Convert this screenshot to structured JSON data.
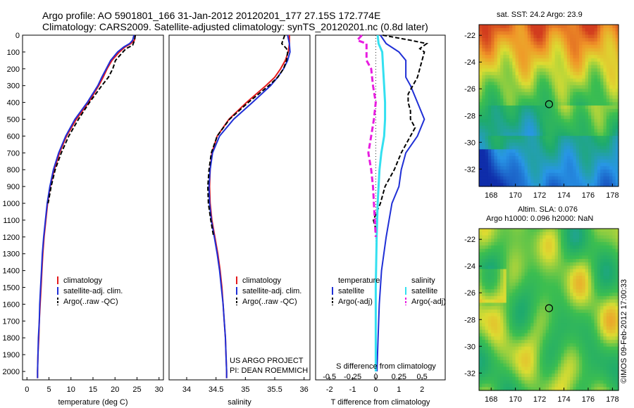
{
  "header": {
    "line1": "Argo profile: AO 5901801_166 31-Jan-2012 20120201_177 27.15S 172.774E",
    "line2": "Climatology: CARS2009. Satellite-adjusted climatology: synTS_20120201.nc (0.8d later)"
  },
  "map_sst": {
    "title": "sat. SST: 24.2 Argo: 23.9"
  },
  "map_sla": {
    "title1": "Altim. SLA: 0.076",
    "title2": "Argo h1000: 0.096 h2000: NaN"
  },
  "credit": "©IMOS 09-Feb-2012 17:00:33",
  "project": {
    "line1": "US ARGO PROJECT",
    "line2": "PI: DEAN ROEMMICH"
  },
  "colors": {
    "climatology": "#e31a1c",
    "satellite": "#1f2fd6",
    "argo": "#000000",
    "sat_s": "#33e0f0",
    "argo_s": "#e81ce0"
  },
  "chart_data": [
    {
      "type": "line",
      "xlabel": "temperature (deg C)",
      "xlim": [
        -1,
        31
      ],
      "ylim": [
        2050,
        0
      ],
      "xticks": [
        0,
        5,
        10,
        15,
        20,
        25,
        30
      ],
      "yticks": [
        0,
        100,
        200,
        300,
        400,
        500,
        600,
        700,
        800,
        900,
        1000,
        1100,
        1200,
        1300,
        1400,
        1500,
        1600,
        1700,
        1800,
        1900,
        2000
      ],
      "legend": [
        "climatology",
        "satellite-adj. clim.",
        "Argo(..raw -QC)"
      ],
      "series": [
        {
          "name": "climatology",
          "depth": [
            0,
            30,
            50,
            70,
            100,
            150,
            200,
            250,
            300,
            400,
            500,
            600,
            700,
            800,
            900,
            1000,
            1100,
            1200,
            1300,
            1400,
            1500,
            1600,
            1700,
            1800,
            1900,
            2000,
            2040
          ],
          "values": [
            24.6,
            24.4,
            23.6,
            22.3,
            21.0,
            19.3,
            18.2,
            17.3,
            16.3,
            14.0,
            11.2,
            9.0,
            7.4,
            6.2,
            5.3,
            4.7,
            4.3,
            3.9,
            3.6,
            3.4,
            3.2,
            3.0,
            2.8,
            2.7,
            2.5,
            2.4,
            2.4
          ]
        },
        {
          "name": "satellite-adj. clim.",
          "depth": [
            0,
            30,
            50,
            70,
            100,
            150,
            200,
            250,
            300,
            400,
            500,
            600,
            700,
            800,
            900,
            1000,
            1100,
            1200,
            1300,
            1400,
            1500,
            1600,
            1700,
            1800,
            1900,
            2000,
            2040
          ],
          "values": [
            24.3,
            24.0,
            23.3,
            22.0,
            20.6,
            19.0,
            18.0,
            17.0,
            16.1,
            13.7,
            10.9,
            8.8,
            7.2,
            6.0,
            5.2,
            4.6,
            4.2,
            3.8,
            3.5,
            3.3,
            3.1,
            2.9,
            2.8,
            2.6,
            2.5,
            2.4,
            2.4
          ]
        },
        {
          "name": "Argo(..raw -QC)",
          "depth": [
            0,
            20,
            40,
            60,
            80,
            100,
            150,
            200,
            250,
            300,
            350,
            400,
            500,
            600,
            700,
            800,
            900,
            1000
          ],
          "values": [
            24.6,
            24.5,
            24.3,
            24.0,
            22.5,
            21.8,
            20.1,
            19.5,
            18.5,
            17.0,
            15.6,
            14.2,
            11.7,
            9.5,
            7.8,
            6.4,
            5.5,
            4.8
          ]
        }
      ]
    },
    {
      "type": "line",
      "xlabel": "salinity",
      "xlim": [
        33.7,
        36.1
      ],
      "ylim": [
        2050,
        0
      ],
      "xticks": [
        34,
        34.5,
        35,
        35.5,
        36
      ],
      "xticklabels": [
        "34",
        "34.5",
        "35",
        "35.5",
        "36"
      ],
      "legend": [
        "climatology",
        "satellite-adj. clim.",
        "Argo(..raw -QC)"
      ],
      "series": [
        {
          "name": "climatology",
          "depth": [
            0,
            50,
            100,
            150,
            200,
            250,
            300,
            400,
            500,
            600,
            700,
            800,
            900,
            1000,
            1100,
            1200,
            1300,
            1400,
            1500,
            1600,
            1700,
            1800,
            1900,
            2000,
            2040
          ],
          "values": [
            35.75,
            35.75,
            35.73,
            35.68,
            35.6,
            35.5,
            35.35,
            35.02,
            34.72,
            34.52,
            34.43,
            34.4,
            34.39,
            34.4,
            34.43,
            34.48,
            34.53,
            34.57,
            34.6,
            34.62,
            34.64,
            34.66,
            34.67,
            34.68,
            34.68
          ]
        },
        {
          "name": "satellite-adj. clim.",
          "depth": [
            0,
            50,
            100,
            150,
            200,
            250,
            300,
            400,
            500,
            600,
            700,
            800,
            900,
            1000,
            1100,
            1200,
            1300,
            1400,
            1500,
            1600,
            1700,
            1800,
            1900,
            2000,
            2040
          ],
          "values": [
            35.72,
            35.75,
            35.76,
            35.72,
            35.65,
            35.55,
            35.43,
            35.12,
            34.8,
            34.56,
            34.44,
            34.4,
            34.38,
            34.39,
            34.42,
            34.47,
            34.52,
            34.56,
            34.59,
            34.62,
            34.64,
            34.66,
            34.67,
            34.68,
            34.68
          ]
        },
        {
          "name": "Argo(..raw -QC)",
          "depth": [
            0,
            20,
            50,
            80,
            100,
            150,
            200,
            250,
            300,
            400,
            500,
            600,
            700,
            800,
            900,
            1000,
            1100,
            1200
          ],
          "values": [
            35.67,
            35.65,
            35.62,
            35.7,
            35.72,
            35.7,
            35.65,
            35.55,
            35.4,
            35.05,
            34.73,
            34.52,
            34.42,
            34.38,
            34.36,
            34.37,
            34.41,
            34.46
          ]
        }
      ]
    },
    {
      "type": "line",
      "xlabel": "T difference from climatology",
      "xlabel2": "S difference from climatology",
      "xlim": [
        -2.6,
        3.0
      ],
      "ylim": [
        2050,
        0
      ],
      "xticks": [
        -2,
        -1,
        0,
        1,
        2
      ],
      "sticks": [
        -0.5,
        -0.25,
        0,
        0.25,
        0.5
      ],
      "sticklabels": [
        "-0.5",
        "-0.25",
        "0",
        "0.25",
        "0.5"
      ],
      "legend_t": [
        "temperature",
        "satellite",
        "Argo(-adj)"
      ],
      "legend_s": [
        "salinity",
        "satellite",
        "Argo(-adj)"
      ],
      "series": [
        {
          "name": "T satellite",
          "depth": [
            0,
            50,
            100,
            150,
            200,
            250,
            300,
            400,
            500,
            600,
            700,
            800,
            900,
            1000,
            1200,
            1400,
            1600,
            1800,
            2000
          ],
          "values": [
            0.2,
            0.45,
            1.0,
            1.3,
            1.3,
            1.3,
            1.5,
            1.8,
            2.1,
            1.8,
            1.3,
            1.1,
            1.0,
            0.7,
            0.45,
            0.25,
            0.15,
            0.1,
            0.05
          ]
        },
        {
          "name": "T Argo(-adj)",
          "depth": [
            0,
            30,
            50,
            80,
            100,
            150,
            200,
            250,
            300,
            350,
            400,
            450,
            500,
            550,
            600,
            700,
            800,
            900,
            1000,
            1100,
            1150
          ],
          "values": [
            0.3,
            1.5,
            2.2,
            1.9,
            2.1,
            2.0,
            1.9,
            1.8,
            1.6,
            1.4,
            1.4,
            1.5,
            1.5,
            1.7,
            1.5,
            1.1,
            0.8,
            0.4,
            0.2,
            -0.1,
            0.0
          ]
        },
        {
          "name": "S satellite",
          "depth": [
            0,
            50,
            100,
            200,
            300,
            400,
            500,
            600,
            700,
            800,
            1000,
            1200,
            1500,
            2000
          ],
          "values": [
            0.02,
            0.03,
            0.07,
            0.08,
            0.09,
            0.1,
            0.1,
            0.09,
            0.06,
            0.04,
            0.02,
            0.01,
            0.0,
            0.0
          ]
        },
        {
          "name": "S Argo(-adj)",
          "depth": [
            0,
            30,
            50,
            100,
            150,
            200,
            300,
            400,
            500,
            600,
            700,
            800,
            900,
            1000,
            1100,
            1200
          ],
          "values": [
            -0.15,
            -0.2,
            -0.1,
            -0.1,
            -0.1,
            -0.05,
            -0.03,
            0.0,
            -0.02,
            -0.05,
            -0.08,
            -0.05,
            -0.03,
            -0.02,
            -0.01,
            0.0
          ]
        }
      ]
    },
    {
      "type": "heatmap",
      "title": "sat. SST: 24.2 Argo: 23.9",
      "xlim": [
        167,
        178.5
      ],
      "ylim": [
        -33.3,
        -21.2
      ],
      "xticks": [
        168,
        170,
        172,
        174,
        176,
        178
      ],
      "yticks": [
        -22,
        -24,
        -26,
        -28,
        -30,
        -32
      ],
      "marker": {
        "lon": 172.774,
        "lat": -27.15
      }
    },
    {
      "type": "heatmap",
      "title": "Altim. SLA: 0.076",
      "xlim": [
        167,
        178.5
      ],
      "ylim": [
        -33.3,
        -21.2
      ],
      "xticks": [
        168,
        170,
        172,
        174,
        176,
        178
      ],
      "yticks": [
        -22,
        -24,
        -26,
        -28,
        -30,
        -32
      ],
      "marker": {
        "lon": 172.774,
        "lat": -27.15
      }
    }
  ]
}
